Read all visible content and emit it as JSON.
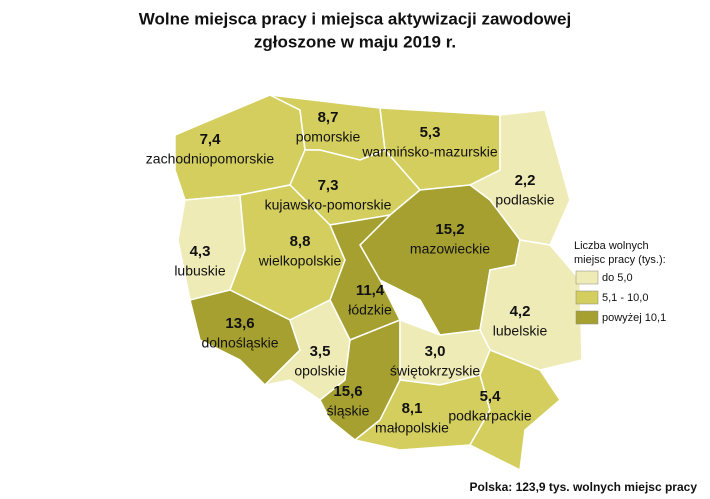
{
  "chart_data": {
    "type": "choropleth",
    "title": [
      "Wolne miejsca pracy i miejsca aktywizacji zawodowej",
      "zgłoszone w maju 2019 r."
    ],
    "categories": [
      "zachodniopomorskie",
      "pomorskie",
      "warmińsko-mazurskie",
      "podlaskie",
      "kujawsko-pomorskie",
      "lubuskie",
      "wielkopolskie",
      "mazowieckie",
      "łódzkie",
      "lubelskie",
      "dolnośląskie",
      "opolskie",
      "śląskie",
      "świętokrzyskie",
      "małopolskie",
      "podkarpackie"
    ],
    "values": [
      7.4,
      8.7,
      5.3,
      2.2,
      7.3,
      4.3,
      8.8,
      15.2,
      11.4,
      4.2,
      13.6,
      3.5,
      15.6,
      3.0,
      8.1,
      5.4
    ],
    "value_labels": [
      "7,4",
      "8,7",
      "5,3",
      "2,2",
      "7,3",
      "4,3",
      "8,8",
      "15,2",
      "11,4",
      "4,2",
      "13,6",
      "3,5",
      "15,6",
      "3,0",
      "8,1",
      "5,4"
    ],
    "colors": [
      "#d4ce5e",
      "#d4ce5e",
      "#d4ce5e",
      "#efebb6",
      "#d4ce5e",
      "#efebb6",
      "#d4ce5e",
      "#a5a02f",
      "#a5a02f",
      "#efebb6",
      "#a5a02f",
      "#efebb6",
      "#a5a02f",
      "#efebb6",
      "#d4ce5e",
      "#d4ce5e"
    ],
    "legend": {
      "title": [
        "Liczba wolnych",
        "miejsc pracy (tys.):"
      ],
      "entries": [
        {
          "label": "do 5,0",
          "color": "#efebb6"
        },
        {
          "label": "5,1 - 10,0",
          "color": "#d4ce5e"
        },
        {
          "label": "powyżej 10,1",
          "color": "#a5a02f"
        }
      ]
    },
    "note": "Polska: 123,9 tys. wolnych miejsc pracy"
  }
}
